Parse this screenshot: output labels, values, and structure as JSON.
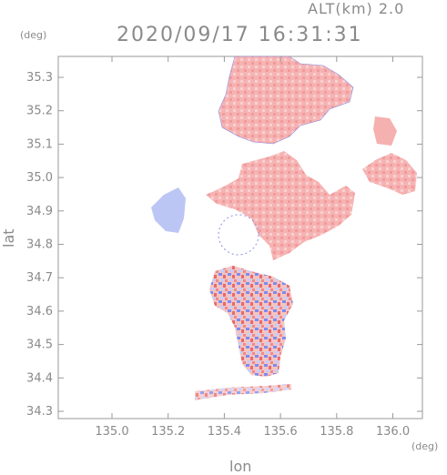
{
  "header": {
    "alt_label": "ALT(km) 2.0",
    "timestamp": "2020/09/17 16:31:31"
  },
  "axes": {
    "x_label": "lon",
    "y_label": "lat",
    "x_unit": "(deg)",
    "y_unit": "(deg)",
    "x_ticks": [
      "135.0",
      "135.2",
      "135.4",
      "135.6",
      "135.8",
      "136.0"
    ],
    "y_ticks": [
      "34.3",
      "34.4",
      "34.5",
      "34.6",
      "34.7",
      "34.8",
      "34.9",
      "35.0",
      "35.1",
      "35.2",
      "35.3"
    ]
  },
  "colors": {
    "frame": "#9a9a9a",
    "warm": "#f4a6a6",
    "warm_light": "#f8c2c2",
    "cool": "#b8c2f4",
    "cool_dark": "#6f7fe8",
    "warm_dark": "#e06060"
  }
}
